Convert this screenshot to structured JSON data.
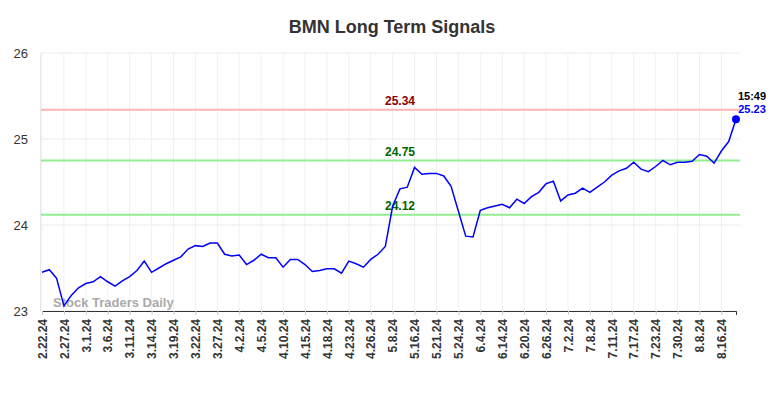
{
  "chart_data": {
    "type": "line",
    "title": "BMN Long Term Signals",
    "categories": [
      "2.22.24",
      null,
      null,
      "2.27.24",
      null,
      null,
      "3.1.24",
      null,
      null,
      "3.6.24",
      null,
      null,
      "3.11.24",
      null,
      null,
      "3.14.24",
      null,
      null,
      "3.19.24",
      null,
      null,
      "3.22.24",
      null,
      null,
      "3.27.24",
      null,
      null,
      "4.2.24",
      null,
      null,
      "4.5.24",
      null,
      null,
      "4.10.24",
      null,
      null,
      "4.15.24",
      null,
      null,
      "4.18.24",
      null,
      null,
      "4.23.24",
      null,
      null,
      "4.26.24",
      null,
      null,
      "5.8.24",
      null,
      null,
      "5.16.24",
      null,
      null,
      "5.21.24",
      null,
      null,
      "5.24.24",
      null,
      null,
      "6.4.24",
      null,
      null,
      "6.14.24",
      null,
      null,
      "6.20.24",
      null,
      null,
      "6.26.24",
      null,
      null,
      "7.2.24",
      null,
      null,
      "7.8.24",
      null,
      null,
      "7.11.24",
      null,
      null,
      "7.17.24",
      null,
      null,
      "7.23.24",
      null,
      null,
      "7.30.24",
      null,
      null,
      "8.8.24",
      null,
      null,
      "8.16.24",
      null,
      null
    ],
    "series": [
      {
        "name": "BMN",
        "color": "#0000ff",
        "values": [
          23.45,
          23.48,
          23.38,
          23.06,
          23.18,
          23.27,
          23.32,
          23.34,
          23.4,
          23.34,
          23.29,
          23.35,
          23.4,
          23.47,
          23.58,
          23.45,
          23.5,
          23.55,
          23.59,
          23.63,
          23.72,
          23.76,
          23.75,
          23.79,
          23.79,
          23.66,
          23.64,
          23.65,
          23.54,
          23.59,
          23.66,
          23.62,
          23.62,
          23.51,
          23.6,
          23.6,
          23.54,
          23.46,
          23.47,
          23.49,
          23.49,
          23.44,
          23.58,
          23.55,
          23.51,
          23.6,
          23.66,
          23.75,
          24.22,
          24.42,
          24.44,
          24.67,
          24.59,
          24.6,
          24.6,
          24.57,
          24.45,
          24.16,
          23.87,
          23.86,
          24.17,
          24.2,
          24.22,
          24.24,
          24.2,
          24.3,
          24.25,
          24.33,
          24.38,
          24.48,
          24.51,
          24.28,
          24.35,
          24.37,
          24.43,
          24.38,
          24.44,
          24.5,
          24.58,
          24.63,
          24.66,
          24.73,
          24.65,
          24.62,
          24.68,
          24.75,
          24.7,
          24.73,
          24.73,
          24.74,
          24.82,
          24.8,
          24.72,
          24.86,
          24.97,
          25.23
        ]
      }
    ],
    "ylim": [
      23,
      26
    ],
    "yticks": [
      23,
      24,
      25,
      26
    ],
    "grid": true,
    "reference_lines": [
      {
        "value": 25.34,
        "color": "#8b0000"
      },
      {
        "value": 24.75,
        "color": "#006400"
      },
      {
        "value": 24.12,
        "color": "#006400"
      }
    ],
    "time_label": "15:49",
    "watermark": "Stock Traders Daily"
  }
}
